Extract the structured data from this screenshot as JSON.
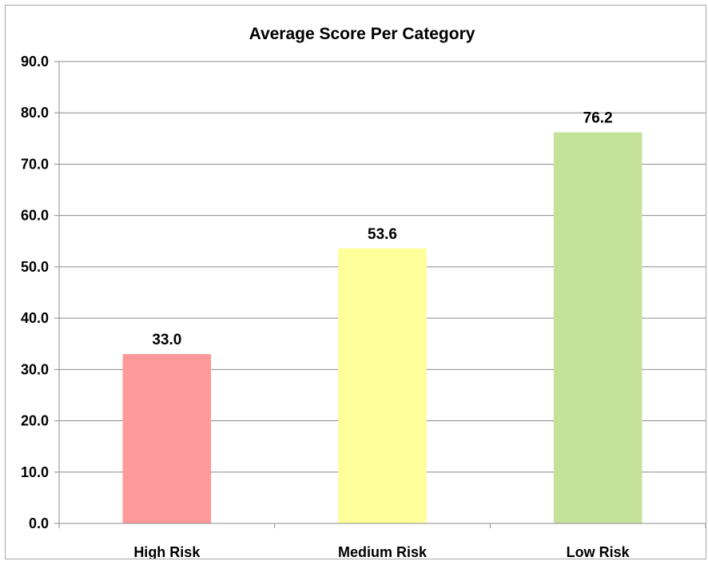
{
  "chart_data": {
    "type": "bar",
    "title": "Average Score Per Category",
    "xlabel": "",
    "ylabel": "",
    "categories": [
      "High Risk",
      "Medium Risk",
      "Low Risk"
    ],
    "values": [
      33.0,
      53.6,
      76.2
    ],
    "data_labels": [
      "33.0",
      "53.6",
      "76.2"
    ],
    "bar_colors": [
      "#ff9999",
      "#ffff99",
      "#c4e29a"
    ],
    "ylim": [
      0,
      90
    ],
    "yticks": [
      0,
      10,
      20,
      30,
      40,
      50,
      60,
      70,
      80,
      90
    ],
    "ytick_labels": [
      "0.0",
      "10.0",
      "20.0",
      "30.0",
      "40.0",
      "50.0",
      "60.0",
      "70.0",
      "80.0",
      "90.0"
    ],
    "grid": true,
    "legend": "none"
  }
}
